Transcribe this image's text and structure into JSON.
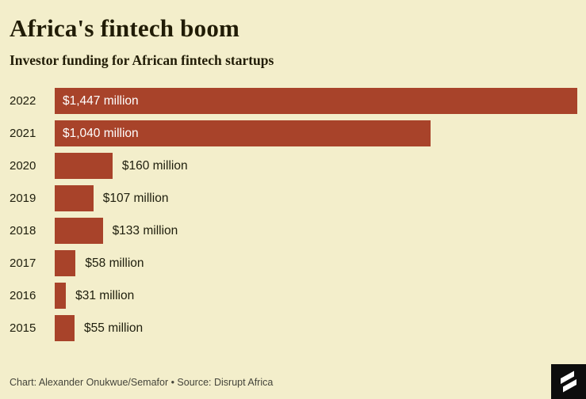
{
  "header": {
    "title": "Africa's fintech boom",
    "subtitle": "Investor funding for African fintech startups"
  },
  "chart_data": {
    "type": "bar",
    "orientation": "horizontal",
    "title": "Africa's fintech boom",
    "subtitle": "Investor funding for African fintech startups",
    "categories": [
      "2022",
      "2021",
      "2020",
      "2019",
      "2018",
      "2017",
      "2016",
      "2015"
    ],
    "values": [
      1447,
      1040,
      160,
      107,
      133,
      58,
      31,
      55
    ],
    "value_labels": [
      "$1,447 million",
      "$1,040 million",
      "$160 million",
      "$107 million",
      "$133 million",
      "$58 million",
      "$31 million",
      "$55 million"
    ],
    "unit": "million USD",
    "xlim": [
      0,
      1447
    ],
    "grid": false,
    "legend": false
  },
  "footer": {
    "credit": "Chart: Alexander Onukwue/Semafor • Source: Disrupt Africa",
    "logo": "semafor-logo"
  },
  "colors": {
    "background": "#f3eecb",
    "bar": "#a8432a",
    "title_text": "#211c06",
    "inside_label_text": "#ffffff",
    "outside_label_text": "#20200f",
    "footer_text": "#45453b",
    "logo_background": "#0d0d0d"
  }
}
